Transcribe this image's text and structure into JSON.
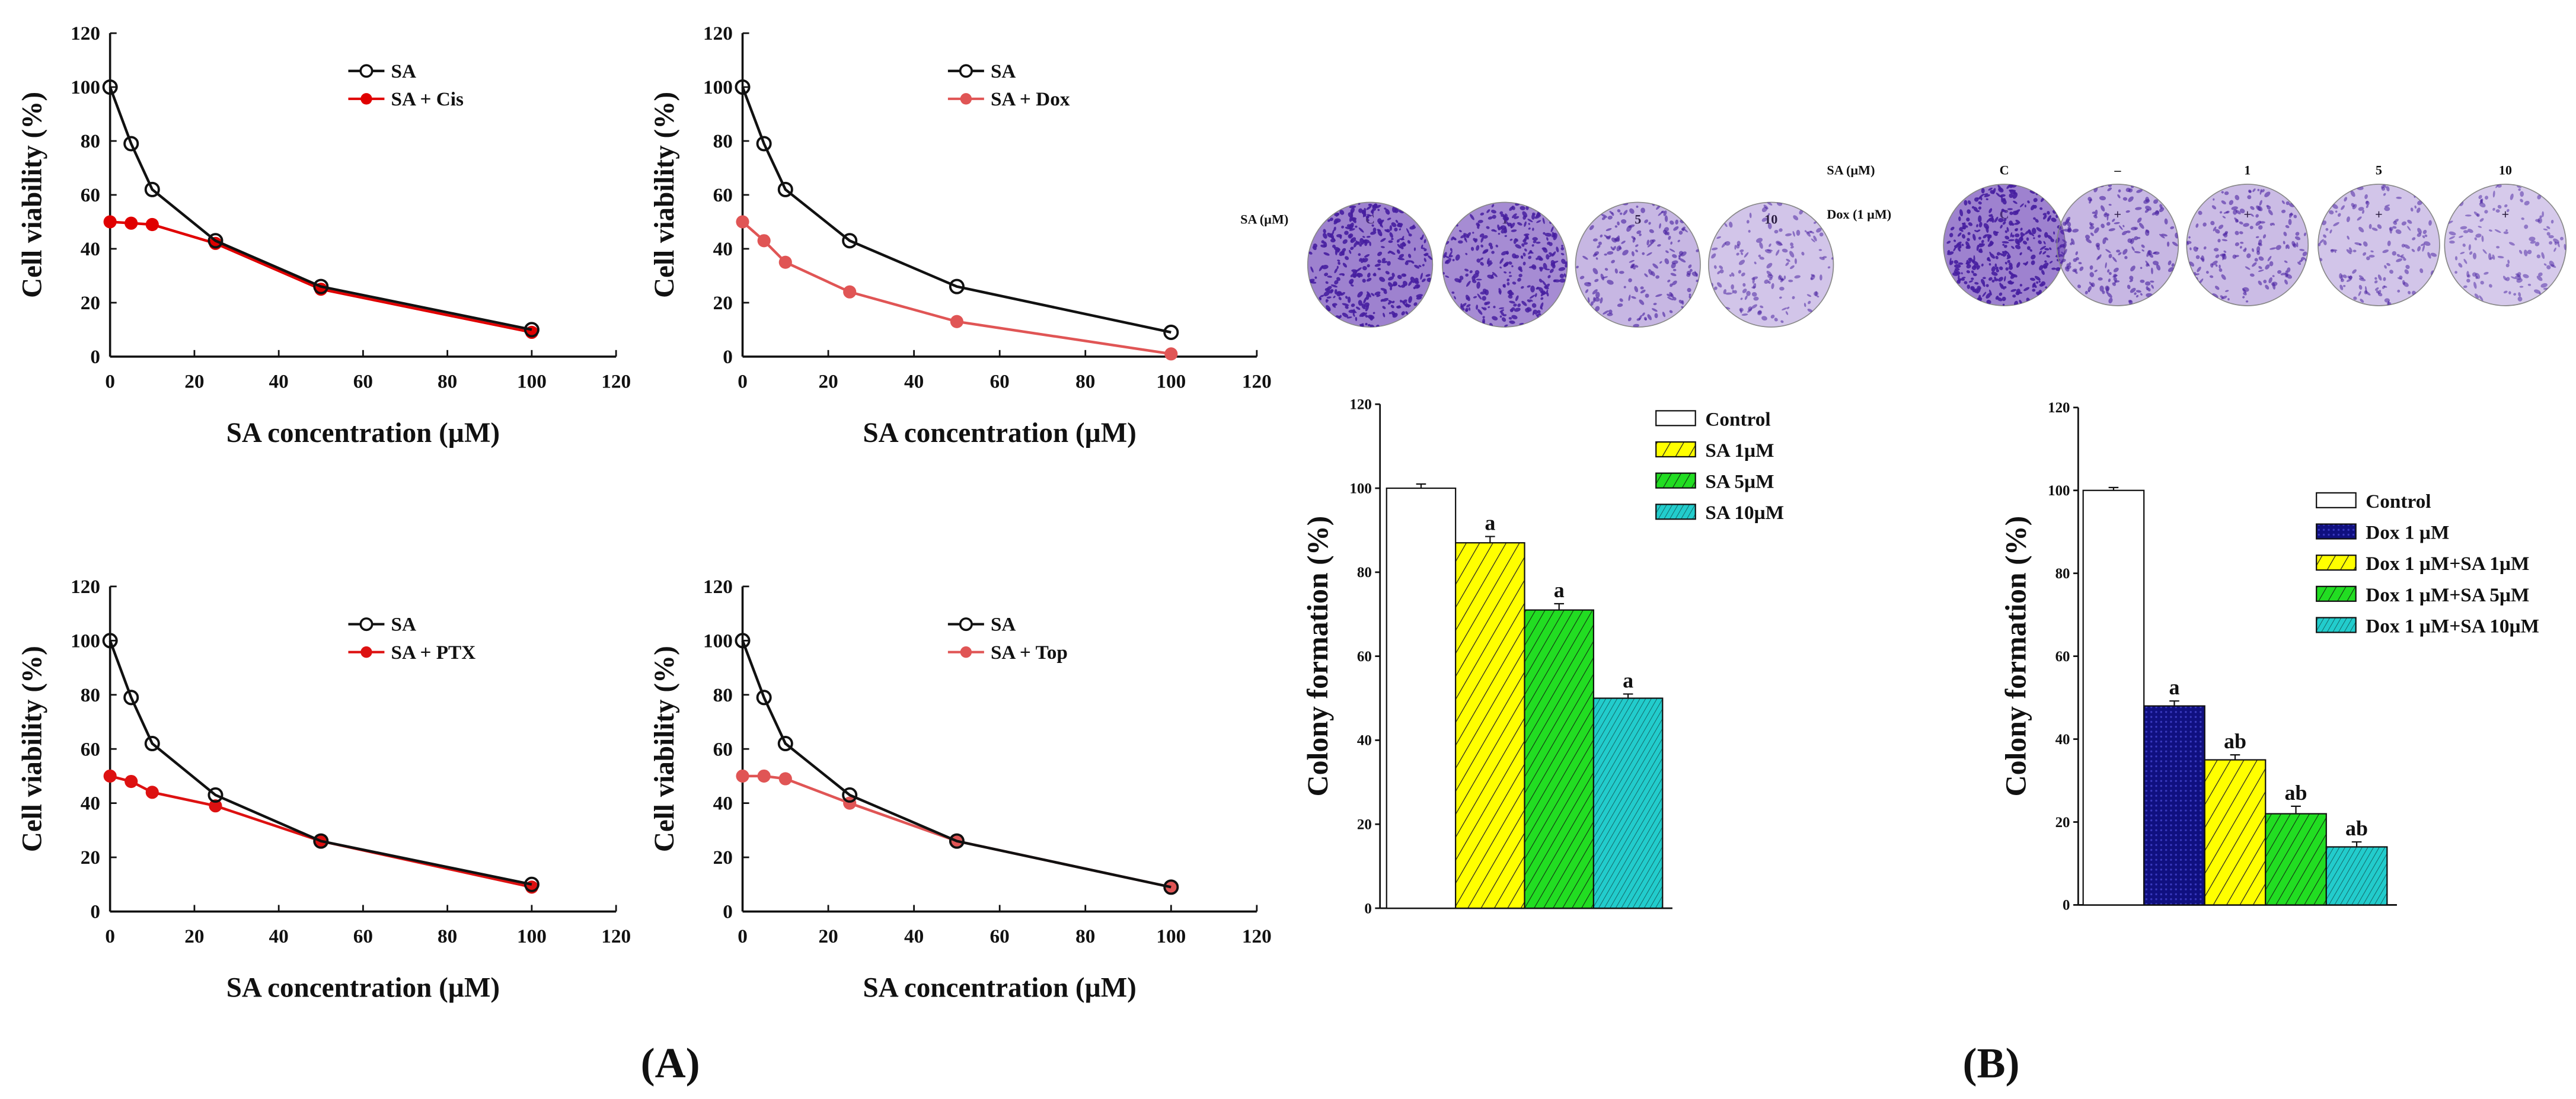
{
  "panel_labels": {
    "A": "(A)",
    "B": "(B)"
  },
  "colors": {
    "sa": "#111111",
    "cis": "#e00000",
    "dox": "#e05555",
    "ptx": "#dd1111",
    "top": "#e05555",
    "control": "#ffffff",
    "yellow": "#ffff00",
    "green": "#22dd22",
    "cyan": "#22cccc",
    "navy": "#101080",
    "stain": "#6a3fb5"
  },
  "chart_data": [
    {
      "type": "line",
      "xlabel": "SA concentration (µM)",
      "ylabel": "Cell viability (%)",
      "xlim": [
        0,
        120
      ],
      "ylim": [
        0,
        120
      ],
      "xticks": [
        0,
        20,
        40,
        60,
        80,
        100,
        120
      ],
      "yticks": [
        0,
        20,
        40,
        60,
        80,
        100,
        120
      ],
      "legend": "top-right",
      "x": [
        0,
        5,
        10,
        25,
        50,
        100
      ],
      "series": [
        {
          "name": "SA",
          "values": [
            100,
            79,
            62,
            43,
            26,
            10
          ],
          "marker": "open"
        },
        {
          "name": "SA + Cis",
          "values": [
            50,
            49.5,
            49,
            42,
            25,
            9
          ],
          "marker": "filled",
          "color_key": "cis"
        }
      ]
    },
    {
      "type": "line",
      "xlabel": "SA concentration (µM)",
      "ylabel": "Cell viability (%)",
      "xlim": [
        0,
        120
      ],
      "ylim": [
        0,
        120
      ],
      "xticks": [
        0,
        20,
        40,
        60,
        80,
        100,
        120
      ],
      "yticks": [
        0,
        20,
        40,
        60,
        80,
        100,
        120
      ],
      "legend": "top-right",
      "x": [
        0,
        5,
        10,
        25,
        50,
        100
      ],
      "series": [
        {
          "name": "SA",
          "values": [
            100,
            79,
            62,
            43,
            26,
            9
          ],
          "marker": "open"
        },
        {
          "name": "SA + Dox",
          "values": [
            50,
            43,
            35,
            24,
            13,
            1
          ],
          "marker": "filled",
          "color_key": "dox"
        }
      ]
    },
    {
      "type": "line",
      "xlabel": "SA concentration (µM)",
      "ylabel": "Cell viability (%)",
      "xlim": [
        0,
        120
      ],
      "ylim": [
        0,
        120
      ],
      "xticks": [
        0,
        20,
        40,
        60,
        80,
        100,
        120
      ],
      "yticks": [
        0,
        20,
        40,
        60,
        80,
        100,
        120
      ],
      "legend": "top-right",
      "x": [
        0,
        5,
        10,
        25,
        50,
        100
      ],
      "series": [
        {
          "name": "SA",
          "values": [
            100,
            79,
            62,
            43,
            26,
            10
          ],
          "marker": "open"
        },
        {
          "name": "SA + PTX",
          "values": [
            50,
            48,
            44,
            39,
            26,
            9
          ],
          "marker": "filled",
          "color_key": "ptx"
        }
      ]
    },
    {
      "type": "line",
      "xlabel": "SA concentration (µM)",
      "ylabel": "Cell viability (%)",
      "xlim": [
        0,
        120
      ],
      "ylim": [
        0,
        120
      ],
      "xticks": [
        0,
        20,
        40,
        60,
        80,
        100,
        120
      ],
      "yticks": [
        0,
        20,
        40,
        60,
        80,
        100,
        120
      ],
      "legend": "top-right",
      "x": [
        0,
        5,
        10,
        25,
        50,
        100
      ],
      "series": [
        {
          "name": "SA",
          "values": [
            100,
            79,
            62,
            43,
            26,
            9
          ],
          "marker": "open"
        },
        {
          "name": "SA + Top",
          "values": [
            50,
            50,
            49,
            40,
            26,
            9
          ],
          "marker": "filled",
          "color_key": "top"
        }
      ]
    },
    {
      "type": "bar",
      "ylabel": "Colony formation (%)",
      "ylim": [
        0,
        120
      ],
      "yticks": [
        0,
        20,
        40,
        60,
        80,
        100,
        120
      ],
      "legend": "top-right",
      "categories": [
        "Control",
        "SA 1µM",
        "SA 5µM",
        "SA 10µM"
      ],
      "values": [
        100,
        87,
        71,
        50
      ],
      "errors": [
        1,
        1.5,
        1.5,
        1
      ],
      "annotations": [
        "",
        "a",
        "a",
        "a"
      ],
      "fills": [
        "control",
        "yellow",
        "green",
        "cyan"
      ],
      "plate_header": "SA (µM)",
      "plate_labels": [
        "C",
        "1",
        "5",
        "10"
      ]
    },
    {
      "type": "bar",
      "ylabel": "Colony formation (%)",
      "ylim": [
        0,
        120
      ],
      "yticks": [
        0,
        20,
        40,
        60,
        80,
        100,
        120
      ],
      "legend": "top-right",
      "categories": [
        "Control",
        "Dox 1 µM",
        "Dox 1 µM+SA 1µM",
        "Dox 1 µM+SA 5µM",
        "Dox 1 µM+SA 10µM"
      ],
      "values": [
        100,
        48,
        35,
        22,
        14
      ],
      "errors": [
        0.7,
        1.2,
        1.2,
        1.8,
        1.2
      ],
      "annotations": [
        "",
        "a",
        "ab",
        "ab",
        "ab"
      ],
      "fills": [
        "control",
        "navy",
        "yellow",
        "green",
        "cyan"
      ],
      "plate_rows": [
        {
          "header": "SA (µM)",
          "labels": [
            "C",
            "–",
            "1",
            "5",
            "10"
          ]
        },
        {
          "header": "Dox (1 µM)",
          "labels": [
            "C",
            "+",
            "+",
            "+",
            "+"
          ]
        }
      ]
    }
  ]
}
